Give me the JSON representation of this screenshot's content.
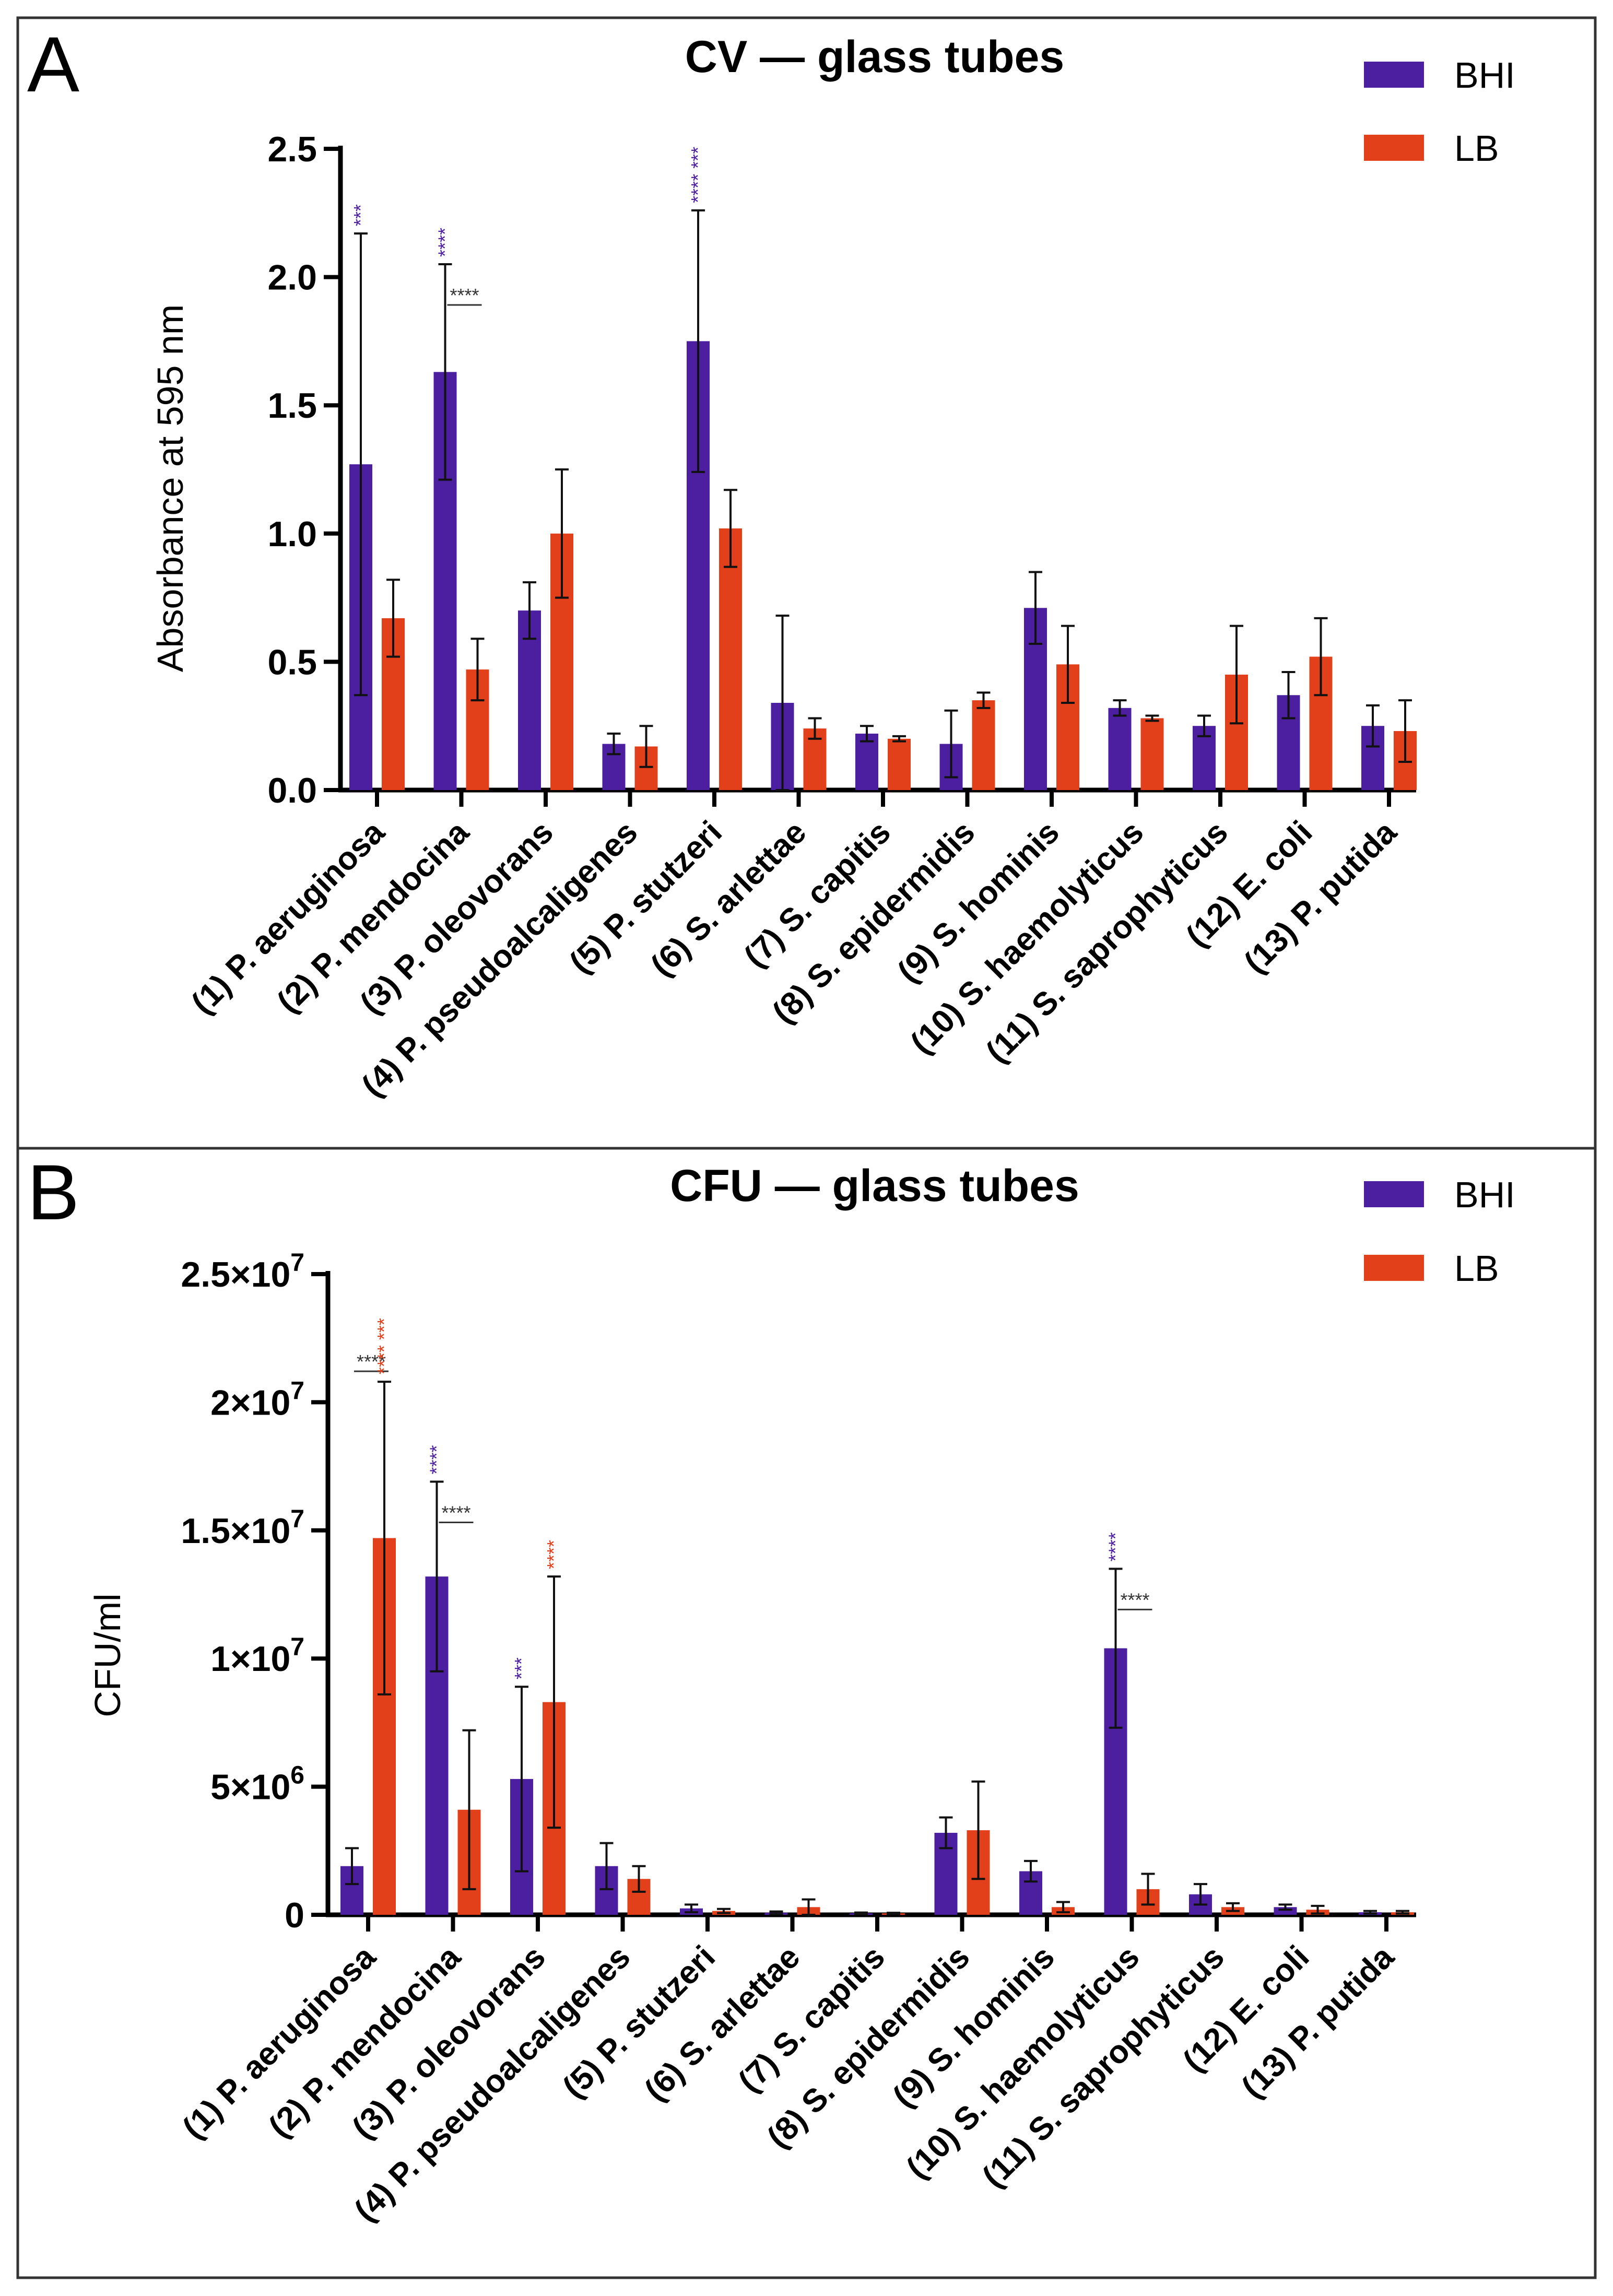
{
  "colors": {
    "BHI": "#4b1fa0",
    "LB": "#e2401b",
    "axis": "#000000",
    "sig_black": "#333333"
  },
  "legend": {
    "bhi": "BHI",
    "lb": "LB"
  },
  "chart_data": [
    {
      "type": "bar",
      "panel": "A",
      "title": "CV — glass tubes",
      "ylabel": "Absorbance at 595 nm",
      "ylim": [
        0,
        2.5
      ],
      "yticks": [
        {
          "v": 0,
          "label": "0.0"
        },
        {
          "v": 0.5,
          "label": "0.5"
        },
        {
          "v": 1.0,
          "label": "1.0"
        },
        {
          "v": 1.5,
          "label": "1.5"
        },
        {
          "v": 2.0,
          "label": "2.0"
        },
        {
          "v": 2.5,
          "label": "2.5"
        }
      ],
      "categories": [
        "(1) P. aeruginosa",
        "(2) P. mendocina",
        "(3) P. oleovorans",
        "(4) P. pseudoalcaligenes",
        "(5) P. stutzeri",
        "(6) S. arlettae",
        "(7) S. capitis",
        "(8) S. epidermidis",
        "(9) S. hominis",
        "(10) S. haemolyticus",
        "(11) S. saprophyticus",
        "(12) E. coli",
        "(13) P. putida"
      ],
      "series": [
        {
          "name": "BHI",
          "values": [
            1.27,
            1.63,
            0.7,
            0.18,
            1.75,
            0.34,
            0.22,
            0.18,
            0.71,
            0.32,
            0.25,
            0.37,
            0.25
          ],
          "errors": [
            0.9,
            0.42,
            0.11,
            0.04,
            0.51,
            0.34,
            0.03,
            0.13,
            0.14,
            0.03,
            0.04,
            0.09,
            0.08
          ]
        },
        {
          "name": "LB",
          "values": [
            0.67,
            0.47,
            1.0,
            0.17,
            1.02,
            0.24,
            0.2,
            0.35,
            0.49,
            0.28,
            0.45,
            0.52,
            0.23
          ],
          "errors": [
            0.15,
            0.12,
            0.25,
            0.08,
            0.15,
            0.04,
            0.01,
            0.03,
            0.15,
            0.01,
            0.19,
            0.15,
            0.12
          ]
        }
      ],
      "annotations": [
        {
          "category": 0,
          "series": "BHI",
          "text": "***"
        },
        {
          "category": 1,
          "series": "BHI",
          "text": "****"
        },
        {
          "category": 1,
          "series": "pair",
          "text": "****"
        },
        {
          "category": 4,
          "series": "BHI",
          "text": "**** ***"
        }
      ]
    },
    {
      "type": "bar",
      "panel": "B",
      "title": "CFU — glass tubes",
      "ylabel": "CFU/ml",
      "ylim": [
        0,
        25000000
      ],
      "yticks": [
        {
          "v": 0,
          "base": "0",
          "exp": ""
        },
        {
          "v": 5000000,
          "base": "5×10",
          "exp": "6"
        },
        {
          "v": 10000000,
          "base": "1×10",
          "exp": "7"
        },
        {
          "v": 15000000,
          "base": "1.5×10",
          "exp": "7"
        },
        {
          "v": 20000000,
          "base": "2×10",
          "exp": "7"
        },
        {
          "v": 25000000,
          "base": "2.5×10",
          "exp": "7"
        }
      ],
      "categories": [
        "(1) P. aeruginosa",
        "(2) P. mendocina",
        "(3) P. oleovorans",
        "(4) P. pseudoalcaligenes",
        "(5) P. stutzeri",
        "(6) S. arlettae",
        "(7) S. capitis",
        "(8) S. epidermidis",
        "(9) S. hominis",
        "(10) S. haemolyticus",
        "(11) S. saprophyticus",
        "(12) E. coli",
        "(13) P. putida"
      ],
      "series": [
        {
          "name": "BHI",
          "values": [
            1900000,
            13200000,
            5300000,
            1900000,
            250000,
            80000,
            60000,
            3200000,
            1700000,
            10400000,
            800000,
            300000,
            100000
          ],
          "errors": [
            700000,
            3700000,
            3600000,
            900000,
            150000,
            50000,
            30000,
            600000,
            400000,
            3100000,
            400000,
            100000,
            50000
          ]
        },
        {
          "name": "LB",
          "values": [
            14700000,
            4100000,
            8300000,
            1400000,
            150000,
            300000,
            60000,
            3300000,
            300000,
            1000000,
            300000,
            200000,
            100000
          ],
          "errors": [
            6100000,
            3100000,
            4900000,
            500000,
            80000,
            300000,
            20000,
            1900000,
            200000,
            600000,
            150000,
            150000,
            50000
          ]
        }
      ],
      "annotations": [
        {
          "category": 0,
          "series": "pair",
          "text": "****"
        },
        {
          "category": 0,
          "series": "LB",
          "text": "**** ***"
        },
        {
          "category": 1,
          "series": "BHI",
          "text": "****"
        },
        {
          "category": 1,
          "series": "pair",
          "text": "****"
        },
        {
          "category": 2,
          "series": "BHI",
          "text": "***"
        },
        {
          "category": 2,
          "series": "LB",
          "text": "****"
        },
        {
          "category": 9,
          "series": "BHI",
          "text": "****"
        },
        {
          "category": 9,
          "series": "pair",
          "text": "****"
        }
      ]
    }
  ]
}
